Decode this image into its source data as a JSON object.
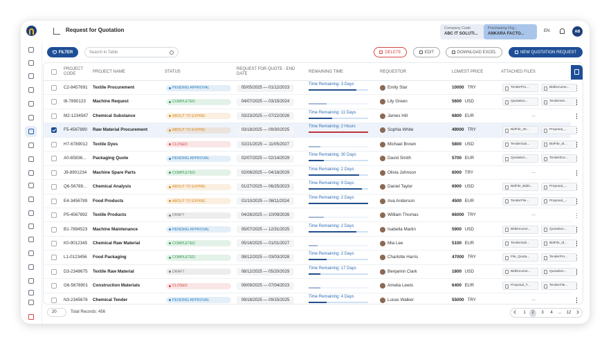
{
  "header": {
    "title": "Request for Quotation",
    "company_label": "Company Code",
    "company_value": "ABC IT SOLUTI...",
    "org_label": "Purchasing Org...",
    "org_value": "ANKARA FACTO...",
    "language": "EN",
    "avatar": "AB"
  },
  "toolbar": {
    "filter": "FILTER",
    "search_placeholder": "Search in Table",
    "delete": "DELETE",
    "edit": "EDIT",
    "download": "DOWNLOAD EXCEL",
    "new_request": "NEW QUOTATION REQUEST"
  },
  "table": {
    "columns": [
      "PROJECT CODE",
      "PROJECT NAME",
      "STATUS",
      "REQUEST FOR QUOTE - END DATE",
      "REMAINING TIME",
      "REQUESTOR",
      "LOWEST PRICE",
      "ATTACHED FILES"
    ],
    "empty_files": "—",
    "rows": [
      {
        "selected": false,
        "code": "C2-8457691",
        "name": "Textile Procurement",
        "status": "PENDING APPROVAL",
        "status_color": "#2a7fc0",
        "dates": "05/05/2025 — 01/12/2023",
        "time": "Time Remaining: 3 Days",
        "progress": 80,
        "bar_color": "#1f4e8c",
        "requestor": "Emily Star",
        "price": "10000",
        "currency": "TRY",
        "files": [
          "TenderPro...",
          "BidDocume..."
        ]
      },
      {
        "selected": false,
        "code": "I8-7890123",
        "name": "Machine Request",
        "status": "COMPLETED",
        "status_color": "#2f9a4f",
        "dates": "04/07/2025 — 03/15/2024",
        "time": null,
        "progress": 30,
        "bar_color": "#1f4e8c",
        "requestor": "Lily Green",
        "price": "5600",
        "currency": "USD",
        "files": [
          "Quotation...",
          "TenderSel..."
        ]
      },
      {
        "selected": false,
        "code": "M2-1234567",
        "name": "Chemical Substance",
        "status": "ABOUT TO EXPIRE",
        "status_color": "#d9891c",
        "dates": "03/23/2025 — 07/22/2026",
        "time": "Time Remaining: 11 Days",
        "progress": 40,
        "bar_color": "#1f4e8c",
        "requestor": "James Hill",
        "price": "6800",
        "currency": "EUR",
        "files": []
      },
      {
        "selected": true,
        "code": "F5-4567890",
        "name": "Raw Material Procurement",
        "status": "ABOUT TO EXPIRE",
        "status_color": "#d9891c",
        "dates": "03/18/2025 — 09/30/2025",
        "time": "Time Remaining: 2 Hours",
        "progress": 100,
        "bar_color": "#b8343c",
        "requestor": "Sophia White",
        "price": "49000",
        "currency": "TRY",
        "files": [
          "BidFile_20...",
          "Proposal_..."
        ]
      },
      {
        "selected": false,
        "code": "H7-6789012",
        "name": "Textile Dyes",
        "status": "CLOSED",
        "status_color": "#d64545",
        "dates": "02/21/2025 — 11/05/2027",
        "time": null,
        "progress": 20,
        "bar_color": "#1f4e8c",
        "requestor": "Michael Brown",
        "price": "5800",
        "currency": "USD",
        "files": [
          "TenderSub...",
          "BidFile_Id..."
        ]
      },
      {
        "selected": false,
        "code": "A0-65836...",
        "name": "Packaging Quote",
        "status": "PENDING APPROVAL",
        "status_color": "#2a7fc0",
        "dates": "02/07/2025 — 02/14/2029",
        "time": "Time Remaining: 30 Days",
        "progress": 25,
        "bar_color": "#1f4e8c",
        "requestor": "David Smith",
        "price": "5700",
        "currency": "EUR",
        "files": [
          "Quotation...",
          "TenderDoc..."
        ]
      },
      {
        "selected": false,
        "code": "J9-8901234",
        "name": "Machine Spare Parts",
        "status": "COMPLETED",
        "status_color": "#2f9a4f",
        "dates": "02/06/2025 — 04/18/2029",
        "time": "Time Remaining: 2 Days",
        "progress": 85,
        "bar_color": "#1f4e8c",
        "requestor": "Olivia Johnson",
        "price": "6000",
        "currency": "TRY",
        "files": []
      },
      {
        "selected": false,
        "code": "Q6-56789...",
        "name": "Chemical Analysis",
        "status": "ABOUT TO EXPIRE",
        "status_color": "#d9891c",
        "dates": "01/27/2025 — 06/25/2023",
        "time": "Time Remaining: 9 Days",
        "progress": 90,
        "bar_color": "#1f4e8c",
        "requestor": "Daniel Taylor",
        "price": "6900",
        "currency": "USD",
        "files": [
          "BidFile_BidD...",
          "Proposal_..."
        ]
      },
      {
        "selected": false,
        "code": "E4-3456789",
        "name": "Food Products",
        "status": "ABOUT TO EXPIRE",
        "status_color": "#d9891c",
        "dates": "01/10/2025 — 08/11/2024",
        "time": "Time Remaining: 2 Days",
        "progress": 100,
        "bar_color": "#1f4e8c",
        "requestor": "Ava Anderson",
        "price": "4500",
        "currency": "EUR",
        "files": [
          "TenderFile...",
          "Proposal_..."
        ]
      },
      {
        "selected": false,
        "code": "P5-4567892",
        "name": "Textile Products",
        "status": "DRAFT",
        "status_color": "#777777",
        "dates": "04/26/2025 — 10/09/2026",
        "time": null,
        "progress": 25,
        "bar_color": "#1f4e8c",
        "requestor": "William Thomas",
        "price": "66000",
        "currency": "TRY",
        "files": []
      },
      {
        "selected": false,
        "code": "B1-7894523",
        "name": "Machine Maintenance",
        "status": "PENDING APPROVAL",
        "status_color": "#2a7fc0",
        "dates": "05/07/2025 — 12/31/2025",
        "time": "Time Remaining: 2 Days",
        "progress": 80,
        "bar_color": "#1f4e8c",
        "requestor": "Isabella Martin",
        "price": "5900",
        "currency": "USD",
        "files": [
          "BidDocume...",
          "Quotation..."
        ]
      },
      {
        "selected": false,
        "code": "K0-9012345",
        "name": "Chemical Raw Material",
        "status": "COMPLETED",
        "status_color": "#2f9a4f",
        "dates": "05/16/2025 — 01/01/2027",
        "time": null,
        "progress": 15,
        "bar_color": "#1f4e8c",
        "requestor": "Mia Lee",
        "price": "5100",
        "currency": "EUR",
        "files": [
          "TenderSub...",
          "BidFile_Id..."
        ]
      },
      {
        "selected": false,
        "code": "L1-0123456",
        "name": "Food Packaging",
        "status": "COMPLETED",
        "status_color": "#2f9a4f",
        "dates": "08/12/2025 — 03/03/2028",
        "time": "Time Remaining: 2 Days",
        "progress": 30,
        "bar_color": "#1f4e8c",
        "requestor": "Charlotte Harris",
        "price": "47000",
        "currency": "TRY",
        "files": [
          "File_Quota...",
          "TenderPro..."
        ]
      },
      {
        "selected": false,
        "code": "D3-2348675",
        "name": "Textile Raw Material",
        "status": "DRAFT",
        "status_color": "#777777",
        "dates": "08/12/2025 — 05/20/2029",
        "time": "Time Remaining: 17 Days",
        "progress": 20,
        "bar_color": "#1f4e8c",
        "requestor": "Benjamin Clark",
        "price": "1800",
        "currency": "USD",
        "files": [
          "BidDocume...",
          "Quotation..."
        ]
      },
      {
        "selected": false,
        "code": "G6-5678901",
        "name": "Construction Materials",
        "status": "CLOSED",
        "status_color": "#d64545",
        "dates": "09/09/2025 — 07/04/2023",
        "time": null,
        "progress": 20,
        "bar_color": "#1f4e8c",
        "requestor": "Amelia Lewis",
        "price": "6400",
        "currency": "EUR",
        "files": [
          "Proposal_T...",
          "TenderFile..."
        ]
      },
      {
        "selected": false,
        "code": "N3-2345678",
        "name": "Chemical Tender",
        "status": "PENDING APPROVAL",
        "status_color": "#2a7fc0",
        "dates": "09/18/2025 — 09/15/2025",
        "time": "Time Remaining: 4 Days",
        "progress": 30,
        "bar_color": "#1f4e8c",
        "requestor": "Lucas Walker",
        "price": "55000",
        "currency": "TRY",
        "files": []
      }
    ]
  },
  "footer": {
    "page_size": "20",
    "total": "Total Records: 456",
    "pages": [
      "1",
      "2",
      "3",
      "4",
      "...",
      "12"
    ],
    "current_page_index": 1
  }
}
